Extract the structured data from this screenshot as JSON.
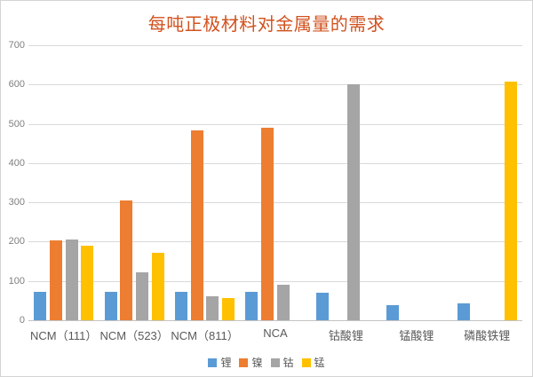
{
  "frame": {
    "background": "#ffffff",
    "border_color": "#d4d4d4"
  },
  "chart_data": {
    "type": "bar",
    "title": "每吨正极材料对金属量的需求",
    "title_color": "#d2521f",
    "categories": [
      "NCM（111）",
      "NCM（523）",
      "NCM（811）",
      "NCA",
      "钴酸锂",
      "锰酸锂",
      "磷酸铁锂"
    ],
    "series": [
      {
        "name": "锂",
        "color": "#5b9bd5",
        "values": [
          72,
          72,
          72,
          72,
          71,
          38,
          43
        ]
      },
      {
        "name": "镍",
        "color": "#ed7d31",
        "values": [
          203,
          305,
          483,
          489,
          0,
          0,
          0
        ]
      },
      {
        "name": "钴",
        "color": "#a5a5a5",
        "values": [
          205,
          122,
          61,
          91,
          601,
          0,
          0
        ]
      },
      {
        "name": "锰",
        "color": "#ffc000",
        "values": [
          190,
          171,
          57,
          0,
          0,
          0,
          608
        ]
      }
    ],
    "xlabel": "",
    "ylabel": "",
    "ylim": [
      0,
      700
    ],
    "ytick_step": 100,
    "yticks": [
      0,
      100,
      200,
      300,
      400,
      500,
      600,
      700
    ],
    "grid": true,
    "gridline_color": "#d9d9d9",
    "axisline_color": "#c3c3c3",
    "ytick_color": "#7f7f7f",
    "xlabel_color": "#595959",
    "legend": {
      "position": "bottom",
      "text_color": "#595959"
    }
  }
}
